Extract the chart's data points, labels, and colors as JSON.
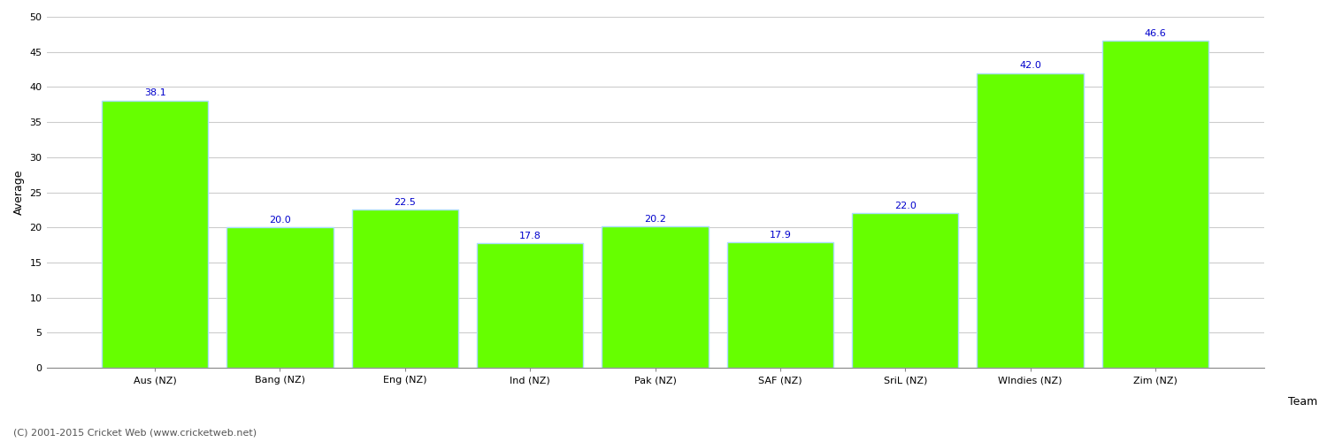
{
  "categories": [
    "Aus (NZ)",
    "Bang (NZ)",
    "Eng (NZ)",
    "Ind (NZ)",
    "Pak (NZ)",
    "SAF (NZ)",
    "SriL (NZ)",
    "WIndies (NZ)",
    "Zim (NZ)"
  ],
  "values": [
    38.1,
    20.0,
    22.5,
    17.8,
    20.2,
    17.9,
    22.0,
    42.0,
    46.6
  ],
  "bar_color": "#66ff00",
  "bar_edge_color": "#aaddff",
  "label_color": "#0000cc",
  "xlabel": "Team",
  "ylabel": "Average",
  "ylim": [
    0,
    50
  ],
  "yticks": [
    0,
    5,
    10,
    15,
    20,
    25,
    30,
    35,
    40,
    45,
    50
  ],
  "background_color": "#ffffff",
  "grid_color": "#cccccc",
  "footer_text": "(C) 2001-2015 Cricket Web (www.cricketweb.net)",
  "label_fontsize": 8,
  "axis_label_fontsize": 9,
  "tick_fontsize": 8,
  "footer_fontsize": 8
}
